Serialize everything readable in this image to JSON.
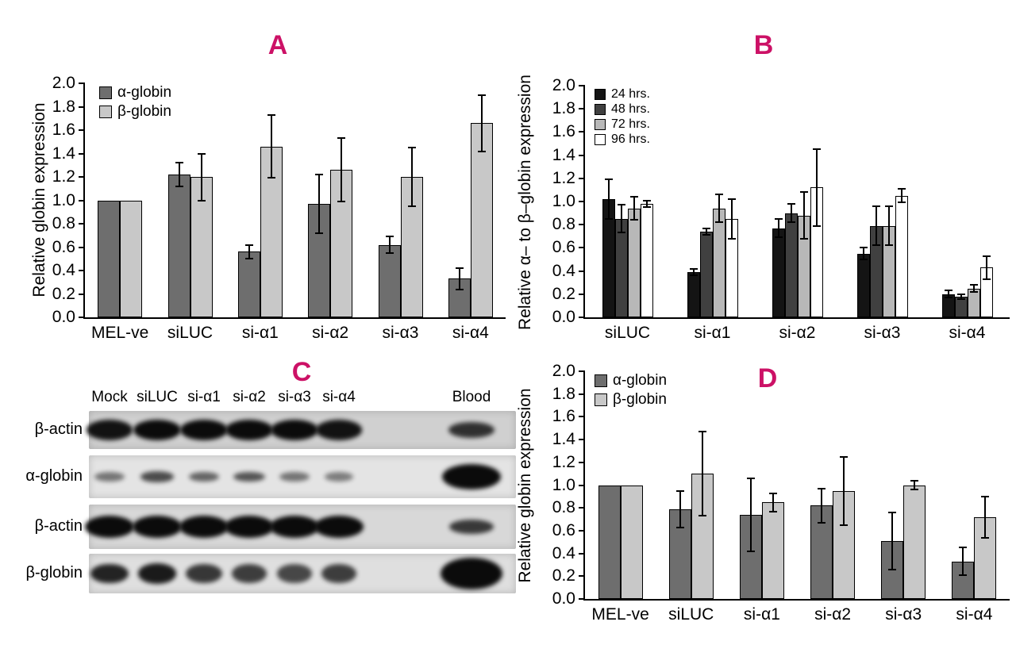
{
  "figure": {
    "accent_color": "#cc1166",
    "background": "#ffffff",
    "panels": {
      "a": {
        "letter": "A"
      },
      "b": {
        "letter": "B"
      },
      "c": {
        "letter": "C"
      },
      "d": {
        "letter": "D"
      }
    }
  },
  "chart_data": [
    {
      "id": "A",
      "type": "bar",
      "title": "",
      "ylabel": "Relative globin expression",
      "categories": [
        "MEL-ve",
        "siLUC",
        "si-α1",
        "si-α2",
        "si-α3",
        "si-α4"
      ],
      "series": [
        {
          "name": "α-globin",
          "color": "#6e6e6e",
          "values": [
            1.0,
            1.22,
            0.56,
            0.97,
            0.62,
            0.33
          ],
          "errors": [
            0,
            0.1,
            0.06,
            0.25,
            0.07,
            0.09
          ]
        },
        {
          "name": "β-globin",
          "color": "#c8c8c8",
          "values": [
            1.0,
            1.2,
            1.46,
            1.26,
            1.2,
            1.66
          ],
          "errors": [
            0,
            0.2,
            0.27,
            0.27,
            0.25,
            0.24
          ]
        }
      ],
      "ylim": [
        0,
        2.0
      ],
      "ytick_step": 0.2,
      "grid": false,
      "legend_position": "top-left"
    },
    {
      "id": "B",
      "type": "bar",
      "title": "",
      "ylabel": "Relative α– to β–globin expression",
      "categories": [
        "siLUC",
        "si-α1",
        "si-α2",
        "si-α3",
        "si-α4"
      ],
      "series": [
        {
          "name": "24 hrs.",
          "color": "#141414",
          "values": [
            1.02,
            0.39,
            0.77,
            0.55,
            0.2
          ],
          "errors": [
            0.17,
            0.03,
            0.08,
            0.05,
            0.03
          ]
        },
        {
          "name": "48 hrs.",
          "color": "#404040",
          "values": [
            0.85,
            0.74,
            0.9,
            0.79,
            0.18
          ],
          "errors": [
            0.12,
            0.03,
            0.08,
            0.17,
            0.02
          ]
        },
        {
          "name": "72 hrs.",
          "color": "#b8b8b8",
          "values": [
            0.94,
            0.94,
            0.88,
            0.79,
            0.25
          ],
          "errors": [
            0.1,
            0.12,
            0.2,
            0.17,
            0.03
          ]
        },
        {
          "name": "96 hrs.",
          "color": "#ffffff",
          "values": [
            0.98,
            0.85,
            1.12,
            1.05,
            0.43
          ],
          "errors": [
            0.03,
            0.17,
            0.33,
            0.06,
            0.1
          ]
        }
      ],
      "ylim": [
        0,
        2.0
      ],
      "ytick_step": 0.2,
      "grid": false,
      "legend_position": "top-left"
    },
    {
      "id": "D",
      "type": "bar",
      "title": "",
      "ylabel": "Relative globin expression",
      "categories": [
        "MEL-ve",
        "siLUC",
        "si-α1",
        "si-α2",
        "si-α3",
        "si-α4"
      ],
      "series": [
        {
          "name": "α-globin",
          "color": "#6e6e6e",
          "values": [
            1.0,
            0.79,
            0.74,
            0.82,
            0.51,
            0.33
          ],
          "errors": [
            0,
            0.16,
            0.32,
            0.15,
            0.25,
            0.12
          ]
        },
        {
          "name": "β-globin",
          "color": "#c8c8c8",
          "values": [
            1.0,
            1.1,
            0.85,
            0.95,
            1.0,
            0.72
          ],
          "errors": [
            0,
            0.37,
            0.08,
            0.3,
            0.04,
            0.18
          ]
        }
      ],
      "ylim": [
        0,
        2.0
      ],
      "ytick_step": 0.2,
      "grid": false,
      "legend_position": "top-left"
    }
  ],
  "blot": {
    "lane_labels": [
      "Mock",
      "siLUC",
      "si-α1",
      "si-α2",
      "si-α3",
      "si-α4",
      "Blood"
    ],
    "rows": [
      {
        "label": "β-actin",
        "band_intensities": [
          0.95,
          1.0,
          1.0,
          1.0,
          1.0,
          0.95
        ],
        "blood_intensity": 0.75
      },
      {
        "label": "α-globin",
        "band_intensities": [
          0.35,
          0.6,
          0.45,
          0.55,
          0.35,
          0.3
        ],
        "blood_intensity": 1.0
      },
      {
        "label": "β-actin",
        "band_intensities": [
          1.0,
          1.0,
          1.0,
          1.0,
          1.0,
          1.0
        ],
        "blood_intensity": 0.7
      },
      {
        "label": "β-globin",
        "band_intensities": [
          0.85,
          0.9,
          0.72,
          0.68,
          0.62,
          0.68
        ],
        "blood_intensity": 1.0
      }
    ]
  }
}
